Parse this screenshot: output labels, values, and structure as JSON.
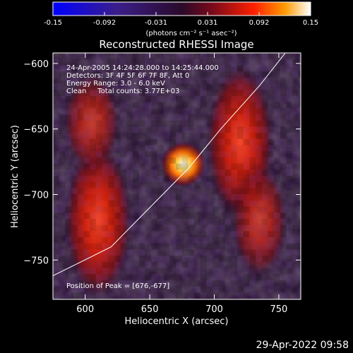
{
  "chart_data": {
    "type": "heatmap",
    "title": "Reconstructed RHESSI Image",
    "xlabel": "Heliocentric X (arcsec)",
    "ylabel": "Heliocentric Y (arcsec)",
    "xlim": [
      575,
      767
    ],
    "ylim": [
      -780,
      -592
    ],
    "xticks": [
      600,
      650,
      700,
      750
    ],
    "yticks": [
      -600,
      -650,
      -700,
      -750
    ],
    "colorbar": {
      "range": [
        -0.15,
        0.15
      ],
      "ticks": [
        "-0.15",
        "-0.092",
        "-0.031",
        "0.031",
        "0.092",
        "0.15"
      ],
      "unit_label": "(photons cm⁻² s⁻¹ asec⁻²)"
    },
    "annotations": [
      "24-Apr-2005 14:24:28.000 to 14:25:44.000",
      "Detectors: 3F 4F 5F 6F 7F 8F, Att 0",
      "Energy Range: 3.0 - 6.0 keV",
      "Clean     Total counts: 3.77E+03"
    ],
    "peak_label": "Position of Peak = [676,-677]",
    "peak": {
      "x": 676,
      "y": -677,
      "value": 0.15
    },
    "emission_regions": [
      {
        "x": 610,
        "y": -720,
        "value": 0.07
      },
      {
        "x": 720,
        "y": -660,
        "value": 0.07
      }
    ],
    "limb_curve": [
      [
        575,
        -762
      ],
      [
        620,
        -740
      ],
      [
        660,
        -700
      ],
      [
        680,
        -680
      ],
      [
        705,
        -650
      ],
      [
        735,
        -617
      ],
      [
        755,
        -592
      ]
    ]
  },
  "footer": {
    "timestamp": "29-Apr-2022 09:58"
  }
}
